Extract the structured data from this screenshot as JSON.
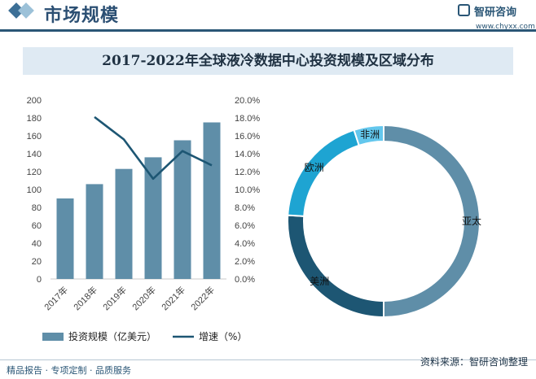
{
  "header": {
    "section_title": "市场规模",
    "logo_name": "智研咨询",
    "logo_url": "www.chyxx.com"
  },
  "footer": {
    "left_text": "精品报告 · 专项定制 · 品质服务",
    "source_text": "资料来源：智研咨询整理"
  },
  "colors": {
    "bar": "#5f8ea8",
    "line": "#1d5673",
    "header_accent": "#2a5676"
  },
  "chart_data": [
    {
      "type": "bar",
      "title": "2017-2022年全球液冷数据中心投资规模及区域分布",
      "categories": [
        "2017年",
        "2018年",
        "2019年",
        "2020年",
        "2021年",
        "2022年"
      ],
      "series": [
        {
          "name": "投资规模（亿美元）",
          "type": "bar",
          "axis": "left",
          "values": [
            90,
            106,
            123,
            136,
            155,
            175
          ]
        },
        {
          "name": "增速（%）",
          "type": "line",
          "axis": "right",
          "values": [
            null,
            18.1,
            15.6,
            11.2,
            14.3,
            12.7
          ]
        }
      ],
      "y_left": {
        "lim": [
          0,
          200
        ],
        "ticks": [
          "0",
          "20",
          "40",
          "60",
          "80",
          "100",
          "120",
          "140",
          "160",
          "180",
          "200"
        ]
      },
      "y_right": {
        "lim": [
          0,
          20
        ],
        "ticks": [
          "0.0%",
          "2.0%",
          "4.0%",
          "6.0%",
          "8.0%",
          "10.0%",
          "12.0%",
          "14.0%",
          "16.0%",
          "18.0%",
          "20.0%"
        ]
      },
      "legend_position": "bottom"
    },
    {
      "type": "pie",
      "donut": true,
      "slices": [
        {
          "label": "亚太",
          "value": 50,
          "color": "#5f8ea8"
        },
        {
          "label": "美洲",
          "value": 26,
          "color": "#1d5673"
        },
        {
          "label": "欧洲",
          "value": 19,
          "color": "#1ea4d2"
        },
        {
          "label": "非洲",
          "value": 5,
          "color": "#63c7ed"
        }
      ]
    }
  ]
}
